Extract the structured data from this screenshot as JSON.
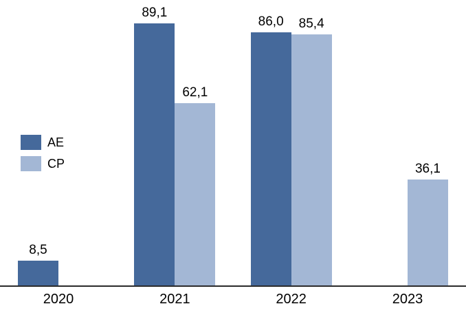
{
  "chart_data": {
    "type": "bar",
    "title": "",
    "xlabel": "",
    "ylabel": "",
    "categories": [
      "2020",
      "2021",
      "2022",
      "2023"
    ],
    "series": [
      {
        "name": "AE",
        "color": "#45699B",
        "values": [
          8.5,
          89.1,
          86.0,
          null
        ]
      },
      {
        "name": "CP",
        "color": "#A3B7D5",
        "values": [
          null,
          62.1,
          85.4,
          36.1
        ]
      }
    ],
    "labels": [
      [
        "8,5",
        "89,1",
        "86,0",
        null
      ],
      [
        null,
        "62,1",
        "85,4",
        "36,1"
      ]
    ],
    "ylim": [
      0,
      95
    ],
    "grid": false,
    "legend_position": "middle-left",
    "axis_line_color": "#2b2b2b"
  }
}
